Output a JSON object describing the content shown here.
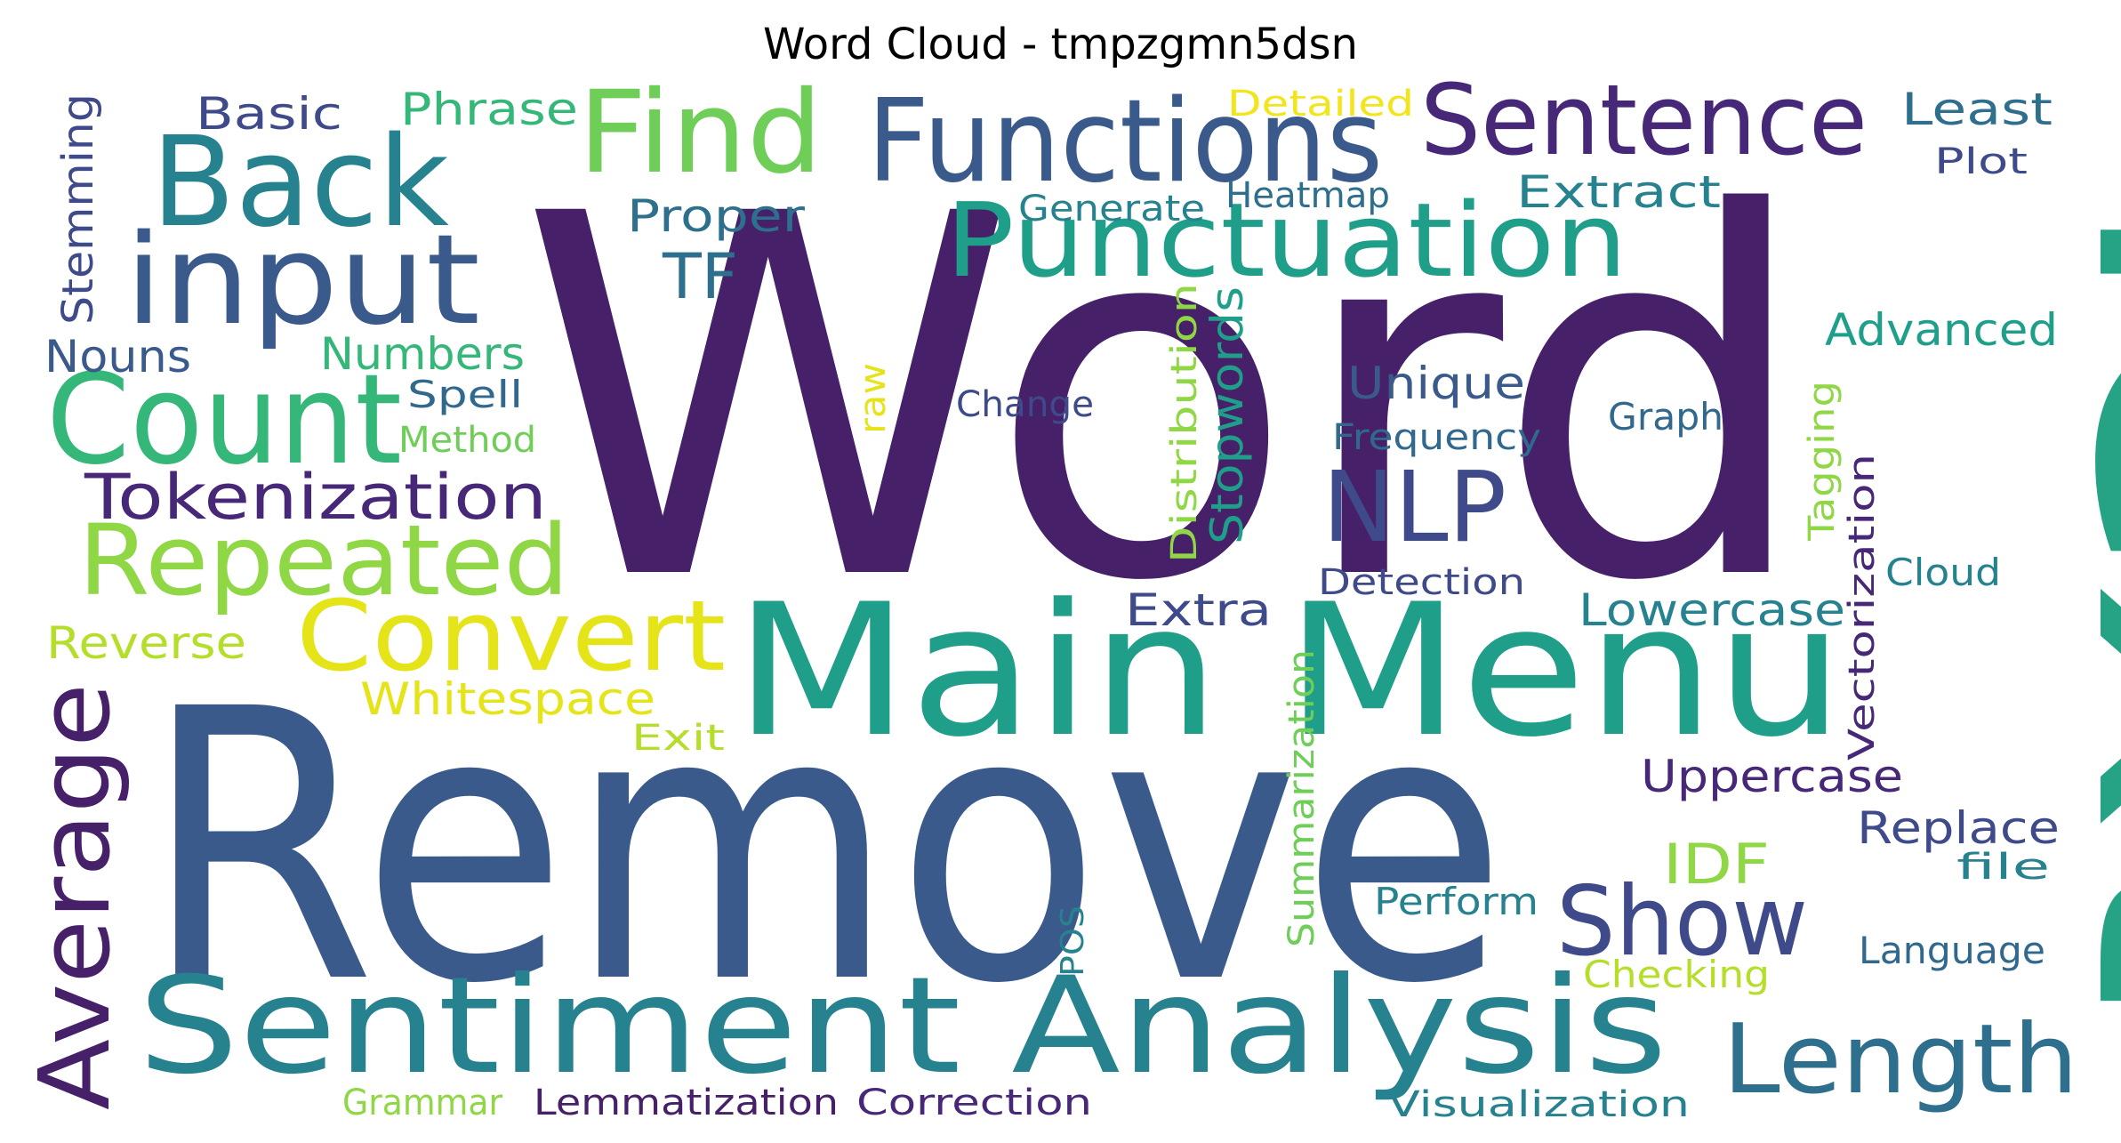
{
  "title": "Word Cloud - tmpzgmn5dsn",
  "palette": {
    "dark_purple": "#462169",
    "purple": "#472878",
    "indigo": "#3e4a89",
    "steel_blue": "#3b5a8c",
    "blue": "#31688e",
    "slate": "#2e6f8e",
    "teal": "#26828e",
    "teal_green": "#1f9e89",
    "green": "#35b779",
    "light_green": "#6ece58",
    "lime": "#8fd744",
    "yellow_green": "#b5de2b",
    "yellow": "#e4e419",
    "bright_yellow": "#f3e51c"
  },
  "words": {
    "word": "Word",
    "remove": "Remove",
    "text": "Text",
    "main_menu": "Main Menu",
    "sentiment_analysis": "Sentiment Analysis",
    "functions": "Functions",
    "back": "Back",
    "input": "input",
    "count": "Count",
    "find": "Find",
    "sentence": "Sentence",
    "punctuation": "Punctuation",
    "repeated": "Repeated",
    "convert": "Convert",
    "average": "Average",
    "show": "Show",
    "length": "Length",
    "nlp": "NLP",
    "tokenization": "Tokenization",
    "tf": "TF",
    "idf": "IDF",
    "basic": "Basic",
    "phrase": "Phrase",
    "detailed": "Detailed",
    "least": "Least",
    "plot": "Plot",
    "stemming": "Stemming",
    "proper": "Proper",
    "generate": "Generate",
    "heatmap": "Heatmap",
    "extract": "Extract",
    "advanced": "Advanced",
    "nouns": "Nouns",
    "numbers": "Numbers",
    "spell": "Spell",
    "method": "Method",
    "raw": "raw",
    "change": "Change",
    "distribution": "Distribution",
    "stopwords": "Stopwords",
    "unique": "Unique",
    "frequency": "Frequency",
    "graph": "Graph",
    "tagging": "Tagging",
    "vectorization": "Vectorization",
    "cloud": "Cloud",
    "detection": "Detection",
    "extra": "Extra",
    "lowercase": "Lowercase",
    "reverse": "Reverse",
    "whitespace": "Whitespace",
    "exit": "Exit",
    "summarization": "Summarization",
    "uppercase": "Uppercase",
    "replace": "Replace",
    "file": "file",
    "perform": "Perform",
    "pos": "POS",
    "checking": "Checking",
    "language": "Language",
    "grammar": "Grammar",
    "lemmatization": "Lemmatization",
    "correction": "Correction",
    "visualization": "Visualization"
  }
}
